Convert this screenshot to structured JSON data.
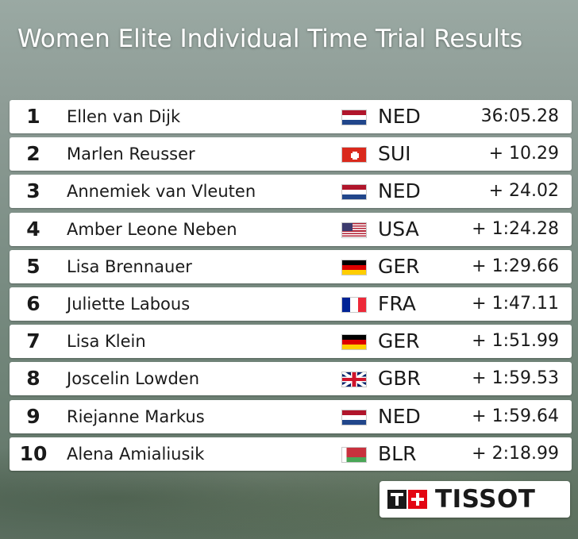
{
  "title": "Women Elite Individual Time Trial Results",
  "results": [
    {
      "rank": "1",
      "name": "Ellen van Dijk",
      "country": "NED",
      "flag": "flag-netherlands",
      "time": "36:05.28"
    },
    {
      "rank": "2",
      "name": "Marlen Reusser",
      "country": "SUI",
      "flag": "flag-switzerland",
      "time": "+ 10.29"
    },
    {
      "rank": "3",
      "name": "Annemiek van Vleuten",
      "country": "NED",
      "flag": "flag-netherlands",
      "time": "+ 24.02"
    },
    {
      "rank": "4",
      "name": "Amber Leone Neben",
      "country": "USA",
      "flag": "flag-usa",
      "time": "+ 1:24.28"
    },
    {
      "rank": "5",
      "name": "Lisa Brennauer",
      "country": "GER",
      "flag": "flag-germany",
      "time": "+ 1:29.66"
    },
    {
      "rank": "6",
      "name": "Juliette Labous",
      "country": "FRA",
      "flag": "flag-france",
      "time": "+ 1:47.11"
    },
    {
      "rank": "7",
      "name": "Lisa Klein",
      "country": "GER",
      "flag": "flag-germany",
      "time": "+ 1:51.99"
    },
    {
      "rank": "8",
      "name": "Joscelin Lowden",
      "country": "GBR",
      "flag": "flag-great-britain",
      "time": "+ 1:59.53"
    },
    {
      "rank": "9",
      "name": "Riejanne Markus",
      "country": "NED",
      "flag": "flag-netherlands",
      "time": "+ 1:59.64"
    },
    {
      "rank": "10",
      "name": "Alena Amialiusik",
      "country": "BLR",
      "flag": "flag-belarus",
      "time": "+ 2:18.99"
    }
  ],
  "sponsor": {
    "logo_text": "TISSOT",
    "icon": "tissot-logo-icon"
  }
}
